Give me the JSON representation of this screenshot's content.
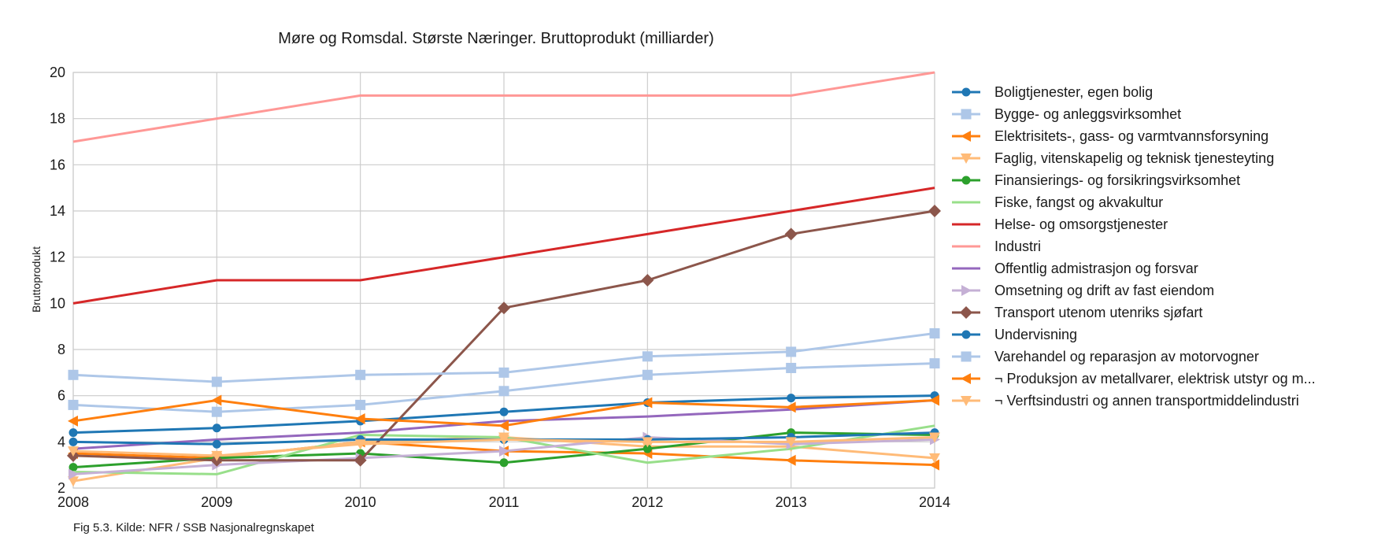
{
  "chart_data": {
    "type": "line",
    "title": "Møre og Romsdal. Største Næringer. Bruttoprodukt (milliarder)",
    "ylabel": "Bruttoprodukt",
    "xlabel": "",
    "caption": "Fig 5.3. Kilde: NFR / SSB Nasjonalregnskapet",
    "x": [
      "2008",
      "2009",
      "2010",
      "2011",
      "2012",
      "2013",
      "2014"
    ],
    "ylim": [
      2,
      20
    ],
    "yticks": [
      "2",
      "4",
      "6",
      "8",
      "10",
      "12",
      "14",
      "16",
      "18",
      "20"
    ],
    "grid": true,
    "legend_position": "right",
    "series": [
      {
        "name": "Boligtjenester, egen bolig",
        "color": "#1f77b4",
        "marker": "circle",
        "values": [
          4.4,
          4.6,
          4.9,
          5.3,
          5.7,
          5.9,
          6.0
        ]
      },
      {
        "name": "Bygge- og anleggsvirksomhet",
        "color": "#aec7e8",
        "marker": "square",
        "values": [
          5.6,
          5.3,
          5.6,
          6.2,
          6.9,
          7.2,
          7.4
        ]
      },
      {
        "name": "Elektrisitets-, gass- og varmtvannsforsyning",
        "color": "#ff7f0e",
        "marker": "triangle-left",
        "values": [
          3.5,
          3.3,
          4.0,
          3.6,
          3.5,
          3.2,
          3.0
        ]
      },
      {
        "name": "Faglig, vitenskapelig og teknisk tjenesteyting",
        "color": "#ffbb78",
        "marker": "triangle-down",
        "values": [
          2.3,
          3.3,
          4.0,
          4.2,
          3.8,
          3.8,
          3.3
        ]
      },
      {
        "name": "Finansierings- og forsikringsvirksomhet",
        "color": "#2ca02c",
        "marker": "circle",
        "values": [
          2.9,
          3.3,
          3.5,
          3.1,
          3.7,
          4.4,
          4.3
        ]
      },
      {
        "name": "Fiske, fangst og akvakultur",
        "color": "#98df8a",
        "marker": "none",
        "values": [
          2.7,
          2.6,
          4.3,
          4.2,
          3.1,
          3.7,
          4.7
        ]
      },
      {
        "name": "Helse- og omsorgstjenester",
        "color": "#d62728",
        "marker": "none",
        "values": [
          10,
          11,
          11,
          12,
          13,
          14,
          15
        ]
      },
      {
        "name": "Industri",
        "color": "#ff9896",
        "marker": "none",
        "values": [
          17,
          18,
          19,
          19,
          19,
          19,
          20
        ]
      },
      {
        "name": "Offentlig admistrasjon og forsvar",
        "color": "#9467bd",
        "marker": "none",
        "values": [
          3.7,
          4.1,
          4.4,
          4.9,
          5.1,
          5.4,
          5.8
        ]
      },
      {
        "name": "Omsetning og drift av fast eiendom",
        "color": "#c5b0d5",
        "marker": "triangle-right",
        "values": [
          2.6,
          3.0,
          3.3,
          3.6,
          4.2,
          3.9,
          4.1
        ]
      },
      {
        "name": "Transport utenom utenriks sjøfart",
        "color": "#8c564b",
        "marker": "diamond",
        "values": [
          3.4,
          3.2,
          3.2,
          9.8,
          11,
          13,
          14
        ]
      },
      {
        "name": "Undervisning",
        "color": "#1f77b4",
        "marker": "circle",
        "values": [
          4.0,
          3.9,
          4.1,
          4.1,
          4.1,
          4.2,
          4.4
        ]
      },
      {
        "name": "Varehandel og reparasjon av motorvogner",
        "color": "#aec7e8",
        "marker": "square",
        "values": [
          6.9,
          6.6,
          6.9,
          7.0,
          7.7,
          7.9,
          8.7
        ]
      },
      {
        "name": "¬ Produksjon av metallvarer, elektrisk utstyr og m...",
        "color": "#ff7f0e",
        "marker": "triangle-left",
        "values": [
          4.9,
          5.8,
          5.0,
          4.7,
          5.7,
          5.5,
          5.8
        ]
      },
      {
        "name": "¬ Verftsindustri og annen transportmiddelindustri",
        "color": "#ffbb78",
        "marker": "triangle-down",
        "values": [
          3.6,
          3.4,
          3.9,
          4.1,
          4.0,
          4.0,
          4.2
        ]
      }
    ]
  }
}
